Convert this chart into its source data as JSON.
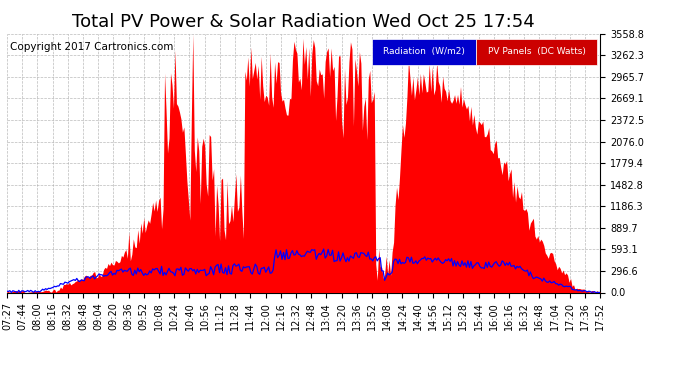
{
  "title": "Total PV Power & Solar Radiation Wed Oct 25 17:54",
  "copyright": "Copyright 2017 Cartronics.com",
  "yticks": [
    0.0,
    296.6,
    593.1,
    889.7,
    1186.3,
    1482.8,
    1779.4,
    2076.0,
    2372.5,
    2669.1,
    2965.7,
    3262.3,
    3558.8
  ],
  "ymax": 3558.8,
  "bg_color": "#ffffff",
  "grid_color": "#aaaaaa",
  "pv_color": "#ff0000",
  "radiation_color": "#0000ff",
  "legend_rad_bg": "#0000cc",
  "legend_pv_bg": "#cc0000",
  "title_fontsize": 13,
  "copyright_fontsize": 7.5,
  "tick_fontsize": 7,
  "xtick_labels": [
    "07:27",
    "07:44",
    "08:00",
    "08:16",
    "08:32",
    "08:48",
    "09:04",
    "09:20",
    "09:36",
    "09:52",
    "10:08",
    "10:24",
    "10:40",
    "10:56",
    "11:12",
    "11:28",
    "11:44",
    "12:00",
    "12:16",
    "12:32",
    "12:48",
    "13:04",
    "13:20",
    "13:36",
    "13:52",
    "14:08",
    "14:24",
    "14:40",
    "14:56",
    "15:12",
    "15:28",
    "15:44",
    "16:00",
    "16:16",
    "16:32",
    "16:48",
    "17:04",
    "17:20",
    "17:36",
    "17:52"
  ]
}
